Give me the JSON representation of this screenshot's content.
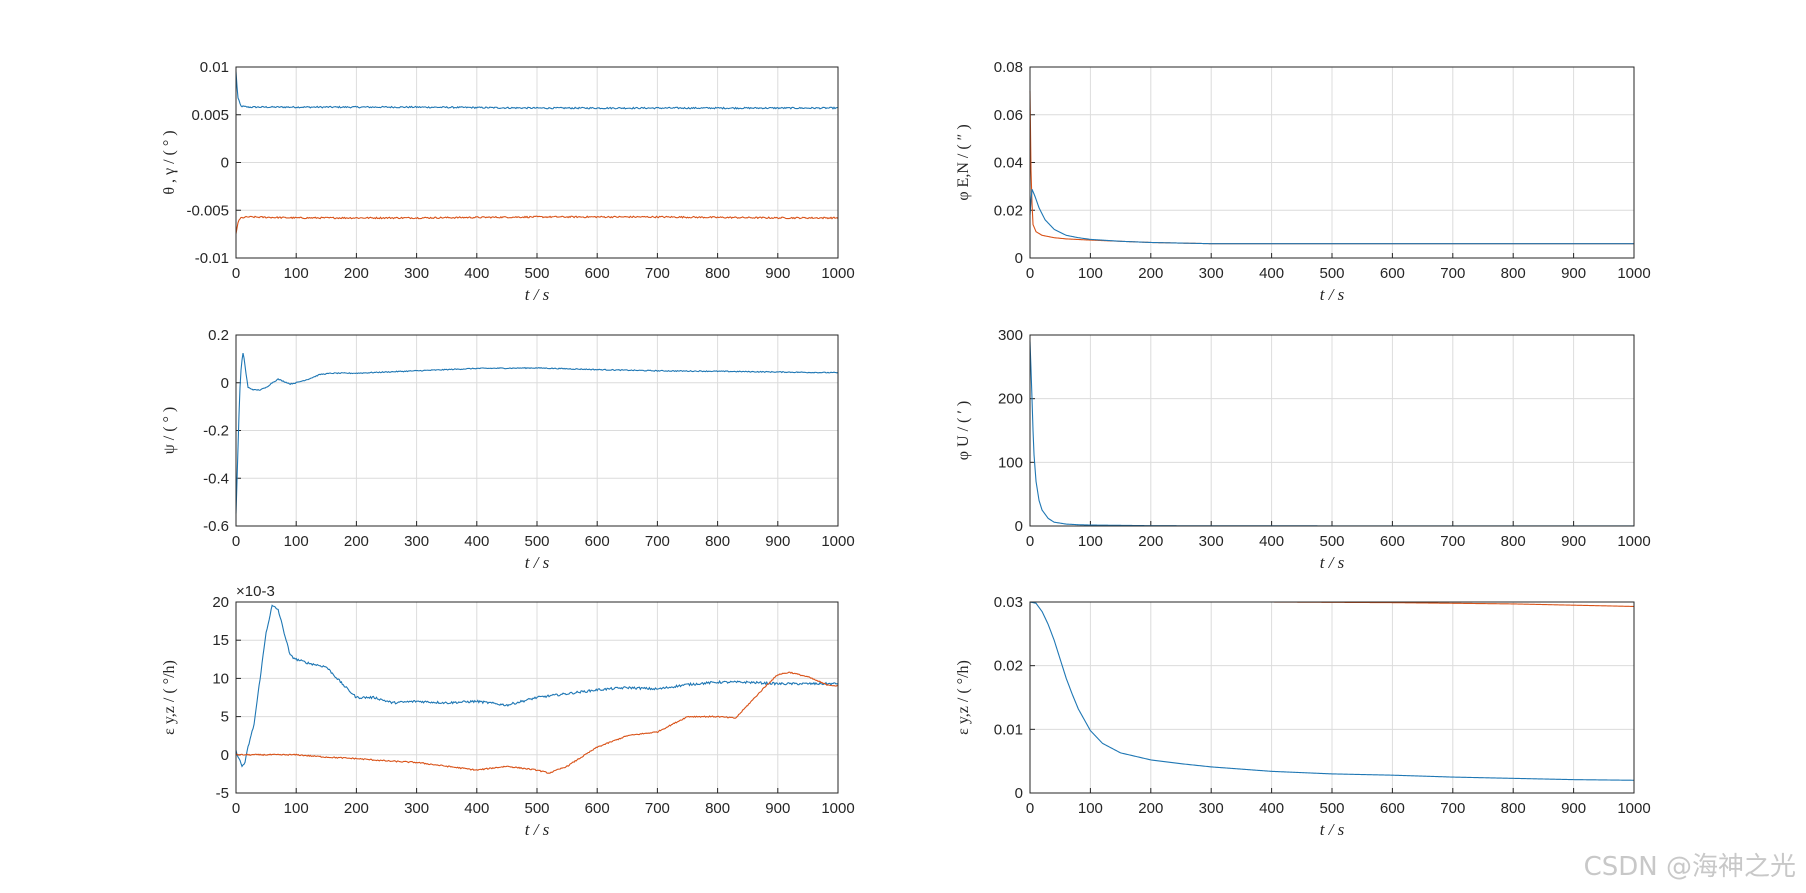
{
  "colors": {
    "blue": "#1f77b4",
    "orange": "#d95319",
    "grid": "#dcdcdc",
    "axis": "#262626"
  },
  "watermark": "CSDN @海神之光",
  "chart_data": [
    {
      "id": "p1",
      "type": "line",
      "xlabel": "t  /  s",
      "ylabel": "θ , γ / ( ° )",
      "xlim": [
        0,
        1000
      ],
      "ylim": [
        -0.01,
        0.01
      ],
      "xticks": [
        "0",
        "100",
        "200",
        "300",
        "400",
        "500",
        "600",
        "700",
        "800",
        "900",
        "1000"
      ],
      "yticks": [
        "0.01",
        "0.005",
        "0",
        "-0.005",
        "-0.01"
      ],
      "exponent": "",
      "series": [
        {
          "name": "θ",
          "color": "blue",
          "noise": 8e-05,
          "x": [
            0,
            3,
            8,
            20,
            100,
            300,
            500,
            700,
            900,
            1000
          ],
          "y": [
            0.0095,
            0.0068,
            0.0059,
            0.0058,
            0.0058,
            0.0058,
            0.0057,
            0.0057,
            0.0057,
            0.0057
          ]
        },
        {
          "name": "γ",
          "color": "orange",
          "noise": 8e-05,
          "x": [
            0,
            3,
            8,
            20,
            100,
            300,
            500,
            700,
            900,
            1000
          ],
          "y": [
            -0.0075,
            -0.0063,
            -0.0058,
            -0.0057,
            -0.0058,
            -0.0058,
            -0.0057,
            -0.0057,
            -0.0058,
            -0.0058
          ]
        }
      ]
    },
    {
      "id": "p2",
      "type": "line",
      "xlabel": "t  /  s",
      "ylabel": "φ E,N / ( ″ )",
      "xlim": [
        0,
        1000
      ],
      "ylim": [
        0,
        0.08
      ],
      "xticks": [
        "0",
        "100",
        "200",
        "300",
        "400",
        "500",
        "600",
        "700",
        "800",
        "900",
        "1000"
      ],
      "yticks": [
        "0.08",
        "0.06",
        "0.04",
        "0.02",
        "0"
      ],
      "exponent": "",
      "series": [
        {
          "name": "φE",
          "color": "orange",
          "noise": 0,
          "x": [
            0,
            2,
            5,
            10,
            20,
            40,
            60,
            100,
            150,
            200,
            300,
            500,
            1000
          ],
          "y": [
            0.07,
            0.03,
            0.014,
            0.011,
            0.0095,
            0.0085,
            0.008,
            0.0075,
            0.007,
            0.0065,
            0.006,
            0.006,
            0.006
          ]
        },
        {
          "name": "φN",
          "color": "blue",
          "noise": 0,
          "x": [
            0,
            3,
            8,
            15,
            25,
            40,
            60,
            80,
            100,
            150,
            200,
            300,
            500,
            1000
          ],
          "y": [
            0.018,
            0.029,
            0.026,
            0.021,
            0.016,
            0.012,
            0.0095,
            0.0085,
            0.0078,
            0.007,
            0.0065,
            0.006,
            0.006,
            0.006
          ]
        }
      ]
    },
    {
      "id": "p3",
      "type": "line",
      "xlabel": "t  /  s",
      "ylabel": "ψ / ( ° )",
      "xlim": [
        0,
        1000
      ],
      "ylim": [
        -0.6,
        0.2
      ],
      "xticks": [
        "0",
        "100",
        "200",
        "300",
        "400",
        "500",
        "600",
        "700",
        "800",
        "900",
        "1000"
      ],
      "yticks": [
        "0.2",
        "0",
        "-0.2",
        "-0.4",
        "-0.6"
      ],
      "exponent": "",
      "series": [
        {
          "name": "ψ",
          "color": "blue",
          "noise": 0.002,
          "x": [
            0,
            3,
            6,
            9,
            12,
            16,
            20,
            30,
            40,
            50,
            60,
            70,
            80,
            90,
            100,
            120,
            140,
            160,
            200,
            300,
            400,
            500,
            600,
            700,
            800,
            900,
            1000
          ],
          "y": [
            -0.55,
            -0.3,
            -0.05,
            0.08,
            0.13,
            0.05,
            -0.02,
            -0.03,
            -0.03,
            -0.02,
            0.0,
            0.015,
            0.005,
            -0.005,
            0.0,
            0.015,
            0.035,
            0.04,
            0.04,
            0.05,
            0.06,
            0.062,
            0.055,
            0.05,
            0.048,
            0.045,
            0.042
          ]
        }
      ]
    },
    {
      "id": "p4",
      "type": "line",
      "xlabel": "t  /  s",
      "ylabel": "φ U / ( ′ )",
      "xlim": [
        0,
        1000
      ],
      "ylim": [
        0,
        300
      ],
      "xticks": [
        "0",
        "100",
        "200",
        "300",
        "400",
        "500",
        "600",
        "700",
        "800",
        "900",
        "1000"
      ],
      "yticks": [
        "300",
        "200",
        "100",
        "0"
      ],
      "exponent": "",
      "series": [
        {
          "name": "φU",
          "color": "blue",
          "noise": 0,
          "x": [
            0,
            3,
            6,
            10,
            15,
            20,
            30,
            40,
            60,
            80,
            100,
            150,
            200,
            300,
            500,
            1000
          ],
          "y": [
            290,
            210,
            120,
            70,
            40,
            25,
            12,
            6,
            3,
            2,
            1.5,
            1,
            0.5,
            0.3,
            0.2,
            0.1
          ]
        }
      ]
    },
    {
      "id": "p5",
      "type": "line",
      "xlabel": "t  /  s",
      "ylabel": "ε y,z / ( °/h)",
      "xlim": [
        0,
        1000
      ],
      "ylim": [
        -5,
        20
      ],
      "xticks": [
        "0",
        "100",
        "200",
        "300",
        "400",
        "500",
        "600",
        "700",
        "800",
        "900",
        "1000"
      ],
      "yticks": [
        "20",
        "15",
        "10",
        "5",
        "0",
        "-5"
      ],
      "exponent": "×10-3",
      "series": [
        {
          "name": "εy",
          "color": "blue",
          "noise": 0.15,
          "x": [
            0,
            5,
            10,
            15,
            20,
            30,
            40,
            50,
            60,
            70,
            80,
            90,
            100,
            120,
            150,
            180,
            200,
            230,
            260,
            300,
            350,
            400,
            450,
            500,
            550,
            600,
            650,
            700,
            750,
            800,
            850,
            900,
            950,
            1000
          ],
          "y": [
            0.5,
            -0.5,
            -1.5,
            -1,
            1,
            4,
            10,
            16,
            19.5,
            19,
            16,
            13,
            12.5,
            12,
            11.5,
            9,
            7.5,
            7.5,
            6.8,
            7,
            6.8,
            7,
            6.5,
            7.5,
            8,
            8.5,
            8.8,
            8.6,
            9.2,
            9.5,
            9.5,
            9.3,
            9.3,
            9.3
          ]
        },
        {
          "name": "εz",
          "color": "orange",
          "noise": 0.08,
          "x": [
            0,
            50,
            100,
            150,
            200,
            250,
            300,
            350,
            400,
            450,
            500,
            520,
            550,
            600,
            650,
            700,
            750,
            800,
            830,
            850,
            880,
            900,
            920,
            950,
            980,
            1000
          ],
          "y": [
            0,
            0,
            0,
            -0.3,
            -0.5,
            -0.8,
            -1.0,
            -1.5,
            -2.0,
            -1.5,
            -2.0,
            -2.4,
            -1.5,
            1.0,
            2.5,
            3.0,
            5.0,
            5.0,
            4.8,
            6.5,
            9.0,
            10.5,
            10.8,
            10.2,
            9.2,
            9.0
          ]
        }
      ]
    },
    {
      "id": "p6",
      "type": "line",
      "xlabel": "t  /  s",
      "ylabel": "ε y,z / ( °/h)",
      "xlim": [
        0,
        1000
      ],
      "ylim": [
        0,
        0.03
      ],
      "xticks": [
        "0",
        "100",
        "200",
        "300",
        "400",
        "500",
        "600",
        "700",
        "800",
        "900",
        "1000"
      ],
      "yticks": [
        "0.03",
        "0.02",
        "0.01",
        "0"
      ],
      "exponent": "",
      "series": [
        {
          "name": "εz",
          "color": "orange",
          "noise": 0,
          "x": [
            0,
            200,
            400,
            600,
            700,
            800,
            900,
            1000
          ],
          "y": [
            0.03,
            0.03,
            0.03,
            0.0299,
            0.0298,
            0.0297,
            0.0295,
            0.0293
          ]
        },
        {
          "name": "εy",
          "color": "blue",
          "noise": 0,
          "x": [
            0,
            10,
            20,
            30,
            40,
            50,
            60,
            70,
            80,
            100,
            120,
            150,
            200,
            250,
            300,
            400,
            500,
            600,
            700,
            800,
            900,
            1000
          ],
          "y": [
            0.03,
            0.0298,
            0.0285,
            0.0265,
            0.024,
            0.021,
            0.018,
            0.0155,
            0.0132,
            0.0098,
            0.0078,
            0.0063,
            0.0052,
            0.0046,
            0.0041,
            0.0034,
            0.003,
            0.0028,
            0.0025,
            0.0023,
            0.0021,
            0.002
          ]
        }
      ]
    }
  ]
}
